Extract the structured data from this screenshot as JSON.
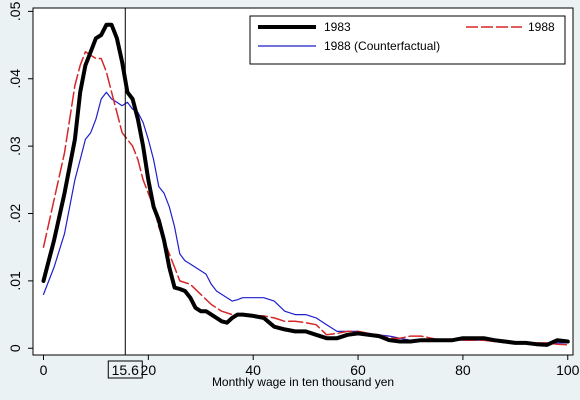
{
  "chart_data": {
    "type": "line",
    "title": "",
    "xlabel": "Monthly wage in ten thousand yen",
    "ylabel": "",
    "xlim": [
      -2,
      101
    ],
    "ylim": [
      -0.001,
      0.0505
    ],
    "x_ticks": [
      0,
      20,
      40,
      60,
      80,
      100
    ],
    "x_tick_labels": [
      "0",
      "20",
      "40",
      "60",
      "80",
      "100"
    ],
    "y_ticks": [
      0,
      0.01,
      0.02,
      0.03,
      0.04,
      0.05
    ],
    "y_tick_labels": [
      "0",
      ".01",
      ".02",
      ".03",
      ".04",
      ".05"
    ],
    "grid": false,
    "legend_position": "top-right",
    "vline": {
      "x": 15.6,
      "label": "15.6"
    },
    "series": [
      {
        "name": "1983",
        "color": "#000000",
        "style": "solid-thick",
        "points": [
          [
            0,
            0.01
          ],
          [
            2,
            0.016
          ],
          [
            4,
            0.023
          ],
          [
            6,
            0.031
          ],
          [
            7,
            0.038
          ],
          [
            8,
            0.042
          ],
          [
            9,
            0.044
          ],
          [
            10,
            0.046
          ],
          [
            11,
            0.0465
          ],
          [
            12,
            0.048
          ],
          [
            13,
            0.048
          ],
          [
            14,
            0.046
          ],
          [
            15,
            0.0425
          ],
          [
            16,
            0.038
          ],
          [
            17,
            0.037
          ],
          [
            18,
            0.034
          ],
          [
            19,
            0.03
          ],
          [
            20,
            0.025
          ],
          [
            21,
            0.021
          ],
          [
            22,
            0.019
          ],
          [
            23,
            0.016
          ],
          [
            24,
            0.012
          ],
          [
            25,
            0.009
          ],
          [
            26,
            0.0088
          ],
          [
            27,
            0.0085
          ],
          [
            28,
            0.0075
          ],
          [
            29,
            0.006
          ],
          [
            30,
            0.0055
          ],
          [
            31,
            0.0055
          ],
          [
            32,
            0.005
          ],
          [
            33,
            0.0045
          ],
          [
            34,
            0.004
          ],
          [
            35,
            0.0038
          ],
          [
            36,
            0.0045
          ],
          [
            37,
            0.005
          ],
          [
            38,
            0.005
          ],
          [
            40,
            0.0048
          ],
          [
            42,
            0.0045
          ],
          [
            44,
            0.0032
          ],
          [
            46,
            0.0028
          ],
          [
            48,
            0.0025
          ],
          [
            50,
            0.0025
          ],
          [
            52,
            0.002
          ],
          [
            54,
            0.0015
          ],
          [
            56,
            0.0015
          ],
          [
            58,
            0.002
          ],
          [
            60,
            0.0022
          ],
          [
            62,
            0.002
          ],
          [
            64,
            0.0018
          ],
          [
            66,
            0.0012
          ],
          [
            68,
            0.001
          ],
          [
            70,
            0.001
          ],
          [
            72,
            0.0012
          ],
          [
            74,
            0.0012
          ],
          [
            76,
            0.0012
          ],
          [
            78,
            0.0012
          ],
          [
            80,
            0.0015
          ],
          [
            82,
            0.0015
          ],
          [
            84,
            0.0015
          ],
          [
            86,
            0.0012
          ],
          [
            88,
            0.001
          ],
          [
            90,
            0.0008
          ],
          [
            92,
            0.0008
          ],
          [
            94,
            0.0006
          ],
          [
            96,
            0.0005
          ],
          [
            98,
            0.0012
          ],
          [
            100,
            0.001
          ]
        ]
      },
      {
        "name": "1988",
        "color": "#d62728",
        "style": "long-dash",
        "points": [
          [
            0,
            0.015
          ],
          [
            2,
            0.022
          ],
          [
            4,
            0.029
          ],
          [
            6,
            0.039
          ],
          [
            7,
            0.042
          ],
          [
            8,
            0.044
          ],
          [
            9,
            0.0435
          ],
          [
            10,
            0.043
          ],
          [
            11,
            0.043
          ],
          [
            12,
            0.041
          ],
          [
            13,
            0.038
          ],
          [
            14,
            0.035
          ],
          [
            15,
            0.032
          ],
          [
            16,
            0.031
          ],
          [
            17,
            0.03
          ],
          [
            18,
            0.028
          ],
          [
            19,
            0.025
          ],
          [
            20,
            0.023
          ],
          [
            21,
            0.021
          ],
          [
            22,
            0.018
          ],
          [
            23,
            0.016
          ],
          [
            24,
            0.014
          ],
          [
            25,
            0.012
          ],
          [
            26,
            0.01
          ],
          [
            28,
            0.0095
          ],
          [
            30,
            0.008
          ],
          [
            32,
            0.0065
          ],
          [
            34,
            0.0055
          ],
          [
            36,
            0.005
          ],
          [
            38,
            0.005
          ],
          [
            40,
            0.0048
          ],
          [
            42,
            0.0048
          ],
          [
            44,
            0.0045
          ],
          [
            46,
            0.004
          ],
          [
            48,
            0.004
          ],
          [
            50,
            0.0038
          ],
          [
            52,
            0.0035
          ],
          [
            54,
            0.002
          ],
          [
            56,
            0.0022
          ],
          [
            58,
            0.0025
          ],
          [
            60,
            0.0025
          ],
          [
            62,
            0.0022
          ],
          [
            64,
            0.002
          ],
          [
            66,
            0.0015
          ],
          [
            68,
            0.0015
          ],
          [
            70,
            0.0018
          ],
          [
            72,
            0.0018
          ],
          [
            74,
            0.0015
          ],
          [
            76,
            0.0012
          ],
          [
            78,
            0.0012
          ],
          [
            80,
            0.0012
          ],
          [
            82,
            0.0012
          ],
          [
            84,
            0.0012
          ],
          [
            86,
            0.001
          ],
          [
            88,
            0.001
          ],
          [
            90,
            0.0008
          ],
          [
            92,
            0.0008
          ],
          [
            94,
            0.0008
          ],
          [
            96,
            0.0008
          ],
          [
            98,
            0.0006
          ],
          [
            100,
            0.0005
          ]
        ]
      },
      {
        "name": "1988 (Counterfactual)",
        "color": "#1f1fcc",
        "style": "solid-thin",
        "points": [
          [
            0,
            0.008
          ],
          [
            2,
            0.012
          ],
          [
            4,
            0.017
          ],
          [
            6,
            0.025
          ],
          [
            7,
            0.028
          ],
          [
            8,
            0.031
          ],
          [
            9,
            0.032
          ],
          [
            10,
            0.034
          ],
          [
            11,
            0.037
          ],
          [
            12,
            0.038
          ],
          [
            13,
            0.037
          ],
          [
            14,
            0.0365
          ],
          [
            15,
            0.036
          ],
          [
            16,
            0.0365
          ],
          [
            17,
            0.0355
          ],
          [
            18,
            0.035
          ],
          [
            19,
            0.0335
          ],
          [
            20,
            0.031
          ],
          [
            21,
            0.028
          ],
          [
            22,
            0.024
          ],
          [
            23,
            0.023
          ],
          [
            24,
            0.021
          ],
          [
            25,
            0.018
          ],
          [
            26,
            0.014
          ],
          [
            27,
            0.013
          ],
          [
            28,
            0.0125
          ],
          [
            29,
            0.012
          ],
          [
            30,
            0.0115
          ],
          [
            31,
            0.011
          ],
          [
            32,
            0.0095
          ],
          [
            33,
            0.0085
          ],
          [
            34,
            0.008
          ],
          [
            35,
            0.0075
          ],
          [
            36,
            0.007
          ],
          [
            37,
            0.0072
          ],
          [
            38,
            0.0075
          ],
          [
            40,
            0.0075
          ],
          [
            42,
            0.0075
          ],
          [
            44,
            0.007
          ],
          [
            46,
            0.0055
          ],
          [
            48,
            0.005
          ],
          [
            50,
            0.005
          ],
          [
            52,
            0.0045
          ],
          [
            54,
            0.0035
          ],
          [
            56,
            0.0025
          ],
          [
            58,
            0.0025
          ],
          [
            60,
            0.0025
          ],
          [
            62,
            0.0022
          ],
          [
            64,
            0.002
          ],
          [
            66,
            0.0018
          ],
          [
            68,
            0.0015
          ],
          [
            70,
            0.0012
          ],
          [
            72,
            0.0012
          ],
          [
            74,
            0.0012
          ],
          [
            76,
            0.0012
          ],
          [
            78,
            0.0012
          ],
          [
            80,
            0.0012
          ],
          [
            82,
            0.0012
          ],
          [
            84,
            0.0012
          ],
          [
            86,
            0.001
          ],
          [
            88,
            0.0008
          ],
          [
            90,
            0.0008
          ],
          [
            92,
            0.0008
          ],
          [
            94,
            0.0006
          ],
          [
            96,
            0.0006
          ],
          [
            98,
            0.0008
          ],
          [
            100,
            0.0008
          ]
        ]
      }
    ]
  }
}
